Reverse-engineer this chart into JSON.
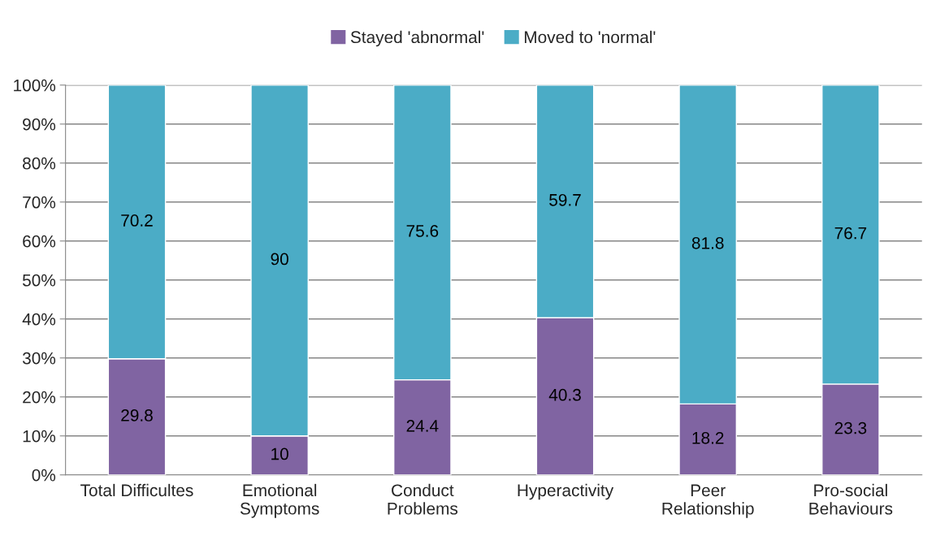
{
  "chart_data": {
    "type": "bar",
    "stacked": true,
    "categories": [
      "Total Difficultes",
      "Emotional\nSymptoms",
      "Conduct\nProblems",
      "Hyperactivity",
      "Peer\nRelationship",
      "Pro-social\nBehaviours"
    ],
    "series": [
      {
        "name": "Stayed 'abnormal'",
        "color": "#8064a2",
        "values": [
          29.8,
          10,
          24.4,
          40.3,
          18.2,
          23.3
        ]
      },
      {
        "name": "Moved to 'normal'",
        "color": "#4bacc6",
        "values": [
          70.2,
          90,
          75.6,
          59.7,
          81.8,
          76.7
        ]
      }
    ],
    "ylim": [
      0,
      100
    ],
    "yticks": [
      {
        "value": 0,
        "label": "0%"
      },
      {
        "value": 10,
        "label": "10%"
      },
      {
        "value": 20,
        "label": "20%"
      },
      {
        "value": 30,
        "label": "30%"
      },
      {
        "value": 40,
        "label": "40%"
      },
      {
        "value": 50,
        "label": "50%"
      },
      {
        "value": 60,
        "label": "60%"
      },
      {
        "value": 70,
        "label": "70%"
      },
      {
        "value": 80,
        "label": "80%"
      },
      {
        "value": 90,
        "label": "90%"
      },
      {
        "value": 100,
        "label": "100%"
      }
    ],
    "grid": "y",
    "legend": "top",
    "data_labels": true
  }
}
